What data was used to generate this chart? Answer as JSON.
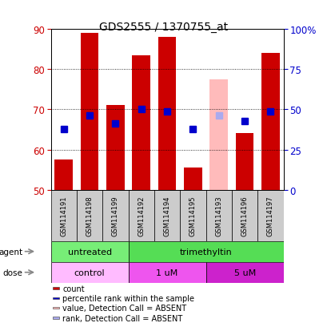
{
  "title": "GDS2555 / 1370755_at",
  "samples": [
    "GSM114191",
    "GSM114198",
    "GSM114199",
    "GSM114192",
    "GSM114194",
    "GSM114195",
    "GSM114193",
    "GSM114196",
    "GSM114197"
  ],
  "bar_values": [
    57.5,
    89.0,
    71.0,
    83.5,
    88.0,
    55.5,
    null,
    64.0,
    84.0
  ],
  "absent_bar_values": [
    null,
    null,
    null,
    null,
    null,
    null,
    77.5,
    null,
    null
  ],
  "rank_values": [
    65.0,
    68.5,
    66.5,
    70.0,
    69.5,
    65.0,
    null,
    67.0,
    69.5
  ],
  "absent_rank_values": [
    null,
    null,
    null,
    null,
    null,
    null,
    68.5,
    null,
    null
  ],
  "bar_bottom": 50,
  "ylim": [
    50,
    90
  ],
  "y2lim": [
    0,
    100
  ],
  "y_ticks": [
    50,
    60,
    70,
    80,
    90
  ],
  "y2_ticks": [
    0,
    25,
    50,
    75,
    100
  ],
  "y2_tick_labels": [
    "0",
    "25",
    "50",
    "75",
    "100%"
  ],
  "bar_color": "#cc0000",
  "absent_bar_color": "#ffbbbb",
  "rank_color": "#0000cc",
  "absent_rank_color": "#aaaaee",
  "grid_color": "#000000",
  "plot_bg": "#ffffff",
  "agent_groups": [
    {
      "label": "untreated",
      "start": 0,
      "end": 3,
      "color": "#77ee77"
    },
    {
      "label": "trimethyltin",
      "start": 3,
      "end": 9,
      "color": "#55dd55"
    }
  ],
  "dose_groups": [
    {
      "label": "control",
      "start": 0,
      "end": 3,
      "color": "#ffbbff"
    },
    {
      "label": "1 uM",
      "start": 3,
      "end": 6,
      "color": "#ee55ee"
    },
    {
      "label": "5 uM",
      "start": 6,
      "end": 9,
      "color": "#cc22cc"
    }
  ],
  "legend_items": [
    {
      "label": "count",
      "color": "#cc0000"
    },
    {
      "label": "percentile rank within the sample",
      "color": "#0000cc"
    },
    {
      "label": "value, Detection Call = ABSENT",
      "color": "#ffbbbb"
    },
    {
      "label": "rank, Detection Call = ABSENT",
      "color": "#aaaaee"
    }
  ],
  "bar_color_red": "#cc0000",
  "ylabel_color": "#cc0000",
  "y2label_color": "#0000cc",
  "title_color": "#000000",
  "bar_width": 0.7,
  "rank_marker_size": 6,
  "sample_bg": "#cccccc"
}
